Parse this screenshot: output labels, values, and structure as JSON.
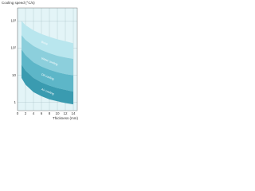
{
  "chart_data": {
    "type": "band",
    "title": "Cooling speed (°C/s)",
    "x_label": "Thickness (mm)",
    "log_y": true,
    "grid": true,
    "x": [
      1,
      2,
      4,
      6,
      8,
      10,
      12,
      14
    ],
    "series": [
      {
        "name": "Brine",
        "color": "#b9e6ee",
        "upper": [
          1000,
          700,
          450,
          330,
          260,
          210,
          180,
          150
        ],
        "lower": [
          300,
          200,
          120,
          85,
          65,
          52,
          45,
          40
        ]
      },
      {
        "name": "Water cooling",
        "color": "#8ccfdc",
        "upper": [
          300,
          200,
          120,
          85,
          65,
          52,
          45,
          40
        ],
        "lower": [
          90,
          55,
          30,
          21,
          16,
          13,
          11,
          10
        ]
      },
      {
        "name": "Oil cooling",
        "color": "#5db6c8",
        "upper": [
          90,
          55,
          30,
          21,
          16,
          13,
          11,
          10
        ],
        "lower": [
          25,
          15,
          8,
          5.5,
          4.2,
          3.4,
          2.9,
          2.5
        ]
      },
      {
        "name": "Air cooling",
        "color": "#3a9bb0",
        "upper": [
          25,
          15,
          8,
          5.5,
          4.2,
          3.4,
          2.9,
          2.5
        ],
        "lower": [
          8,
          4.5,
          2.4,
          1.7,
          1.3,
          1.1,
          0.95,
          0.85
        ]
      }
    ],
    "xlim": [
      0,
      15
    ],
    "xticks": [
      0,
      2,
      4,
      6,
      8,
      10,
      12,
      14
    ],
    "ylim": [
      0.5,
      3000
    ],
    "yticks": [
      {
        "value": 1,
        "label": "1"
      },
      {
        "value": 10,
        "label": "10"
      },
      {
        "value": 100,
        "label": "10²"
      },
      {
        "value": 1000,
        "label": "10³"
      }
    ]
  }
}
